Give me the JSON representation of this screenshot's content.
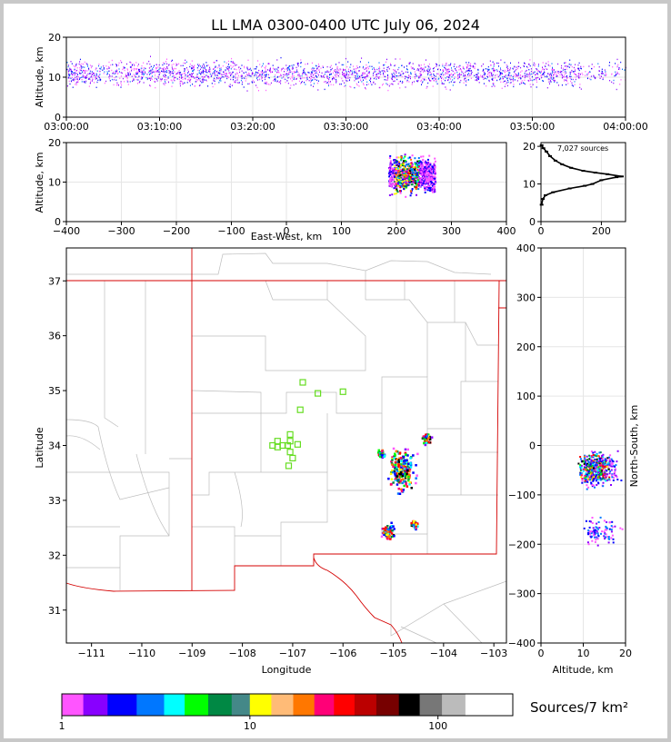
{
  "title": "LL LMA 0300-0400 UTC July 06, 2024",
  "colorbar_title": "Sources/7 km²",
  "source_count": "7,027 sources",
  "chart_data": [
    {
      "panel": "altitude-time",
      "type": "scatter",
      "xlabel": "",
      "ylabel": "Altitude, km",
      "x_ticks": [
        "03:00:00",
        "03:10:00",
        "03:20:00",
        "03:30:00",
        "03:40:00",
        "03:50:00",
        "04:00:00"
      ],
      "y_ticks": [
        "0",
        "10",
        "20"
      ],
      "xlim": [
        "03:00:00",
        "04:00:00"
      ],
      "ylim": [
        0,
        20
      ],
      "grid": true
    },
    {
      "panel": "altitude-eastwest",
      "type": "heatmap",
      "xlabel": "East-West, km",
      "ylabel": "Altitude, km",
      "x_ticks": [
        "−400",
        "−300",
        "−200",
        "−100",
        "0",
        "100",
        "200",
        "300",
        "400"
      ],
      "y_ticks": [
        "0",
        "10",
        "20"
      ],
      "xlim": [
        -400,
        400
      ],
      "ylim": [
        0,
        20
      ],
      "grid": true
    },
    {
      "panel": "altitude-histogram",
      "type": "line",
      "x_ticks": [
        "0",
        "200"
      ],
      "y_ticks": [
        "0",
        "10",
        "20"
      ],
      "xlim": [
        0,
        280
      ],
      "ylim": [
        0,
        21
      ],
      "points": [
        [
          2,
          4.5
        ],
        [
          6,
          6
        ],
        [
          15,
          7
        ],
        [
          40,
          7.8
        ],
        [
          95,
          8.8
        ],
        [
          145,
          9.5
        ],
        [
          170,
          10
        ],
        [
          200,
          11
        ],
        [
          250,
          11.8
        ],
        [
          268,
          12
        ],
        [
          220,
          12.6
        ],
        [
          180,
          13
        ],
        [
          140,
          13.5
        ],
        [
          100,
          14.3
        ],
        [
          70,
          15.2
        ],
        [
          48,
          16.2
        ],
        [
          30,
          17.4
        ],
        [
          18,
          18.6
        ],
        [
          8,
          19.5
        ],
        [
          2,
          20.3
        ]
      ]
    },
    {
      "panel": "plan-view",
      "type": "heatmap",
      "xlabel": "Longitude",
      "ylabel": "Latitude",
      "x_ticks": [
        "−111",
        "−110",
        "−109",
        "−108",
        "−107",
        "−106",
        "−105",
        "−104",
        "−103"
      ],
      "y_ticks": [
        "31",
        "32",
        "33",
        "34",
        "35",
        "36",
        "37"
      ],
      "xlim": [
        -111.5,
        -102.75
      ],
      "ylim": [
        30.4,
        37.6
      ],
      "stations": [
        [
          -106.8,
          35.15
        ],
        [
          -106.5,
          34.95
        ],
        [
          -106.0,
          34.98
        ],
        [
          -106.85,
          34.65
        ],
        [
          -107.05,
          34.2
        ],
        [
          -107.3,
          34.08
        ],
        [
          -107.05,
          34.08
        ],
        [
          -107.4,
          34.0
        ],
        [
          -107.3,
          33.97
        ],
        [
          -107.2,
          34.0
        ],
        [
          -107.1,
          34.0
        ],
        [
          -106.9,
          34.02
        ],
        [
          -107.05,
          33.88
        ],
        [
          -107.0,
          33.77
        ],
        [
          -107.08,
          33.63
        ]
      ],
      "clusters": [
        [
          -104.85,
          33.55
        ],
        [
          -104.35,
          34.15
        ],
        [
          -105.12,
          32.45
        ],
        [
          -105.25,
          33.87
        ],
        [
          -104.6,
          32.58
        ]
      ]
    },
    {
      "panel": "northsouth-altitude",
      "type": "heatmap",
      "xlabel": "Altitude, km",
      "ylabel": "North-South, km",
      "x_ticks": [
        "0",
        "10",
        "20"
      ],
      "y_ticks": [
        "−400",
        "−300",
        "−200",
        "−100",
        "0",
        "100",
        "200",
        "300",
        "400"
      ],
      "xlim": [
        0,
        20
      ],
      "ylim": [
        -400,
        400
      ],
      "grid": true
    },
    {
      "panel": "colorbar",
      "type": "heatmap",
      "tick_labels": [
        "1",
        "10",
        "100"
      ],
      "colors": [
        "#ff55ff",
        "#8800ff",
        "#0000ff",
        "#0077ff",
        "#00ffff",
        "#00ff00",
        "#008844",
        "#448888",
        "#ffff00",
        "#ffbb77",
        "#ff7700",
        "#ff0077",
        "#ff0000",
        "#bb0000",
        "#770000",
        "#000000",
        "#777777",
        "#bbbbbb",
        "#ffffff"
      ]
    }
  ]
}
